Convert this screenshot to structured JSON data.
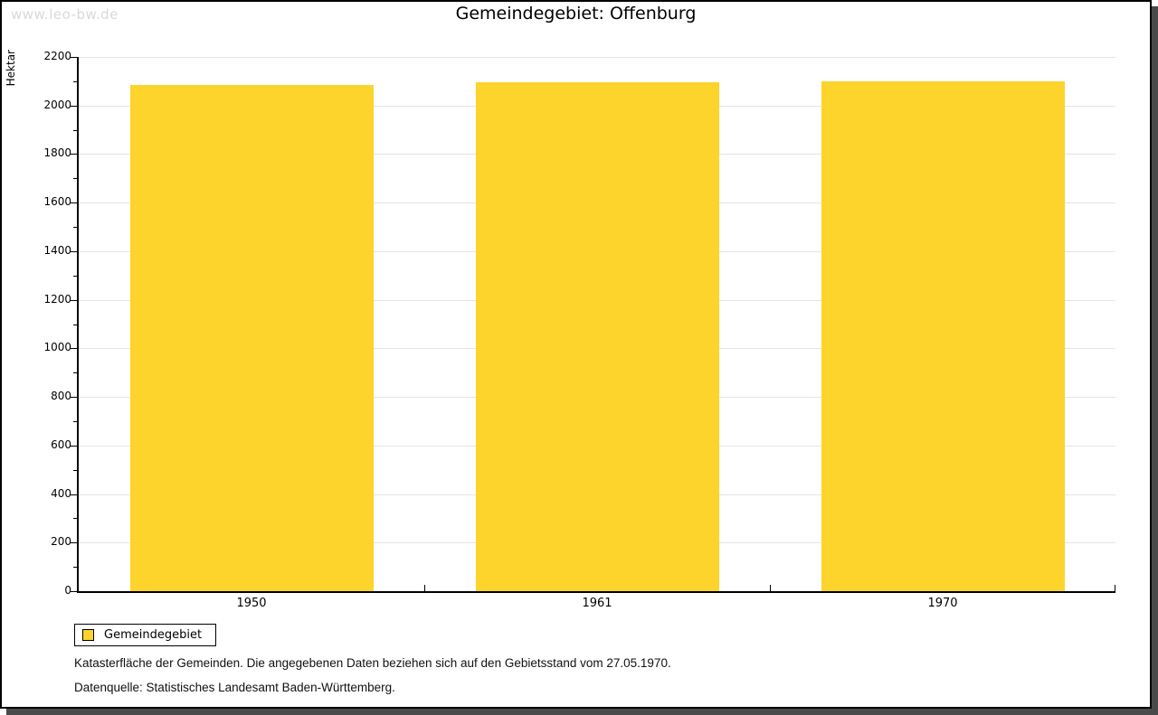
{
  "watermark": "www.leo-bw.de",
  "header": {
    "title": "Gemeindegebiet: Offenburg"
  },
  "chart_data": {
    "type": "bar",
    "title": "Gemeindegebiet: Offenburg",
    "categories": [
      "1950",
      "1961",
      "1970"
    ],
    "series": [
      {
        "name": "Gemeindegebiet",
        "values": [
          2083,
          2097,
          2101
        ],
        "color": "#FCD42B"
      }
    ],
    "xlabel": "",
    "ylabel": "Hektar",
    "ylim": [
      0,
      2200
    ],
    "ytick_major": 200,
    "ytick_minor": 100,
    "grid": true,
    "legend_position": "bottom-left"
  },
  "legend": {
    "items": [
      {
        "label": "Gemeindegebiet",
        "color": "#FCD42B"
      }
    ]
  },
  "footnotes": [
    "Katasterfläche der Gemeinden. Die angegebenen Daten beziehen sich auf den Gebietsstand vom 27.05.1970.",
    "Datenquelle: Statistisches Landesamt Baden-Württemberg."
  ],
  "colors": {
    "bar": "#FCD42B",
    "grid": "#E4E4E4",
    "axis": "#000000",
    "watermark": "#D9D9D9",
    "frame_shadow": "#4A4A4A"
  }
}
